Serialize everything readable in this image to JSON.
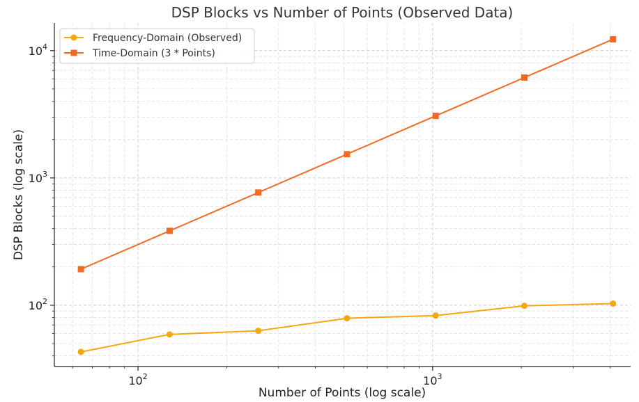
{
  "chart_data": {
    "type": "line",
    "title": "DSP Blocks vs Number of Points (Observed Data)",
    "xlabel": "Number of Points (log scale)",
    "ylabel": "DSP Blocks (log scale)",
    "xscale": "log",
    "yscale": "log",
    "xlim": [
      52,
      4700
    ],
    "ylim": [
      33,
      16500
    ],
    "grid": true,
    "legend_position": "top-left",
    "x_ticks": [
      {
        "value": 100,
        "base": "10",
        "exp": "2"
      },
      {
        "value": 1000,
        "base": "10",
        "exp": "3"
      }
    ],
    "y_ticks": [
      {
        "value": 100,
        "base": "10",
        "exp": "2"
      },
      {
        "value": 1000,
        "base": "10",
        "exp": "3"
      },
      {
        "value": 10000,
        "base": "10",
        "exp": "4"
      }
    ],
    "x": [
      64,
      128,
      256,
      512,
      1024,
      2048,
      4096
    ],
    "series": [
      {
        "name": "Frequency-Domain (Observed)",
        "values": [
          43,
          59,
          63,
          79,
          83,
          99,
          103
        ],
        "color": "#f5a70f",
        "marker": "circle"
      },
      {
        "name": "Time-Domain (3 * Points)",
        "values": [
          192,
          384,
          768,
          1536,
          3072,
          6144,
          12288
        ],
        "color": "#ef6a22",
        "marker": "square"
      }
    ]
  }
}
